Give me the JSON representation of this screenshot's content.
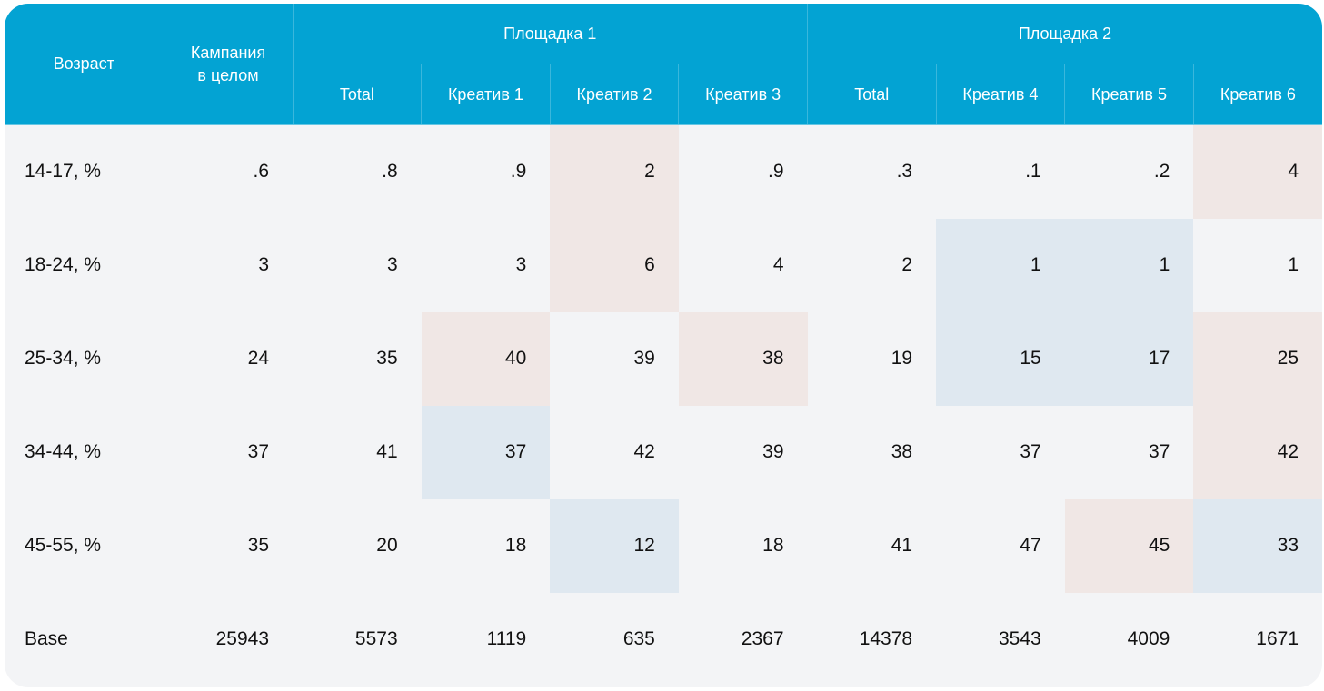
{
  "header": {
    "age_label": "Возраст",
    "campaign_label_line1": "Кампания",
    "campaign_label_line2": "в целом",
    "platform1_label": "Площадка 1",
    "platform2_label": "Площадка 2",
    "sub_columns": [
      "Total",
      "Креатив 1",
      "Креатив 2",
      "Креатив 3",
      "Total",
      "Креатив 4",
      "Креатив 5",
      "Креатив 6"
    ]
  },
  "rows": [
    {
      "label": "14-17, %",
      "cells": [
        ".6",
        ".8",
        ".9",
        "2",
        ".9",
        ".3",
        ".1",
        ".2",
        "4"
      ],
      "highlight": [
        "",
        "",
        "",
        "pink",
        "",
        "",
        "",
        "",
        "pink"
      ]
    },
    {
      "label": "18-24, %",
      "cells": [
        "3",
        "3",
        "3",
        "6",
        "4",
        "2",
        "1",
        "1",
        "1"
      ],
      "highlight": [
        "",
        "",
        "",
        "pink",
        "",
        "",
        "blue",
        "blue",
        ""
      ]
    },
    {
      "label": "25-34, %",
      "cells": [
        "24",
        "35",
        "40",
        "39",
        "38",
        "19",
        "15",
        "17",
        "25"
      ],
      "highlight": [
        "",
        "",
        "pink",
        "",
        "pink",
        "",
        "blue",
        "blue",
        "pink"
      ]
    },
    {
      "label": "34-44, %",
      "cells": [
        "37",
        "41",
        "37",
        "42",
        "39",
        "38",
        "37",
        "37",
        "42"
      ],
      "highlight": [
        "",
        "",
        "blue",
        "",
        "",
        "",
        "",
        "",
        "pink"
      ]
    },
    {
      "label": "45-55, %",
      "cells": [
        "35",
        "20",
        "18",
        "12",
        "18",
        "41",
        "47",
        "45",
        "33"
      ],
      "highlight": [
        "",
        "",
        "",
        "blue",
        "",
        "",
        "",
        "pink",
        "blue"
      ]
    },
    {
      "label": "Base",
      "cells": [
        "25943",
        "5573",
        "1119",
        "635",
        "2367",
        "14378",
        "3543",
        "4009",
        "1671"
      ],
      "highlight": [
        "",
        "",
        "",
        "",
        "",
        "",
        "",
        "",
        ""
      ]
    }
  ],
  "colors": {
    "header_bg": "#03a3d3",
    "body_bg": "#f3f4f6",
    "highlight_pink": "#f0e7e5",
    "highlight_blue": "#dfe8f0"
  }
}
